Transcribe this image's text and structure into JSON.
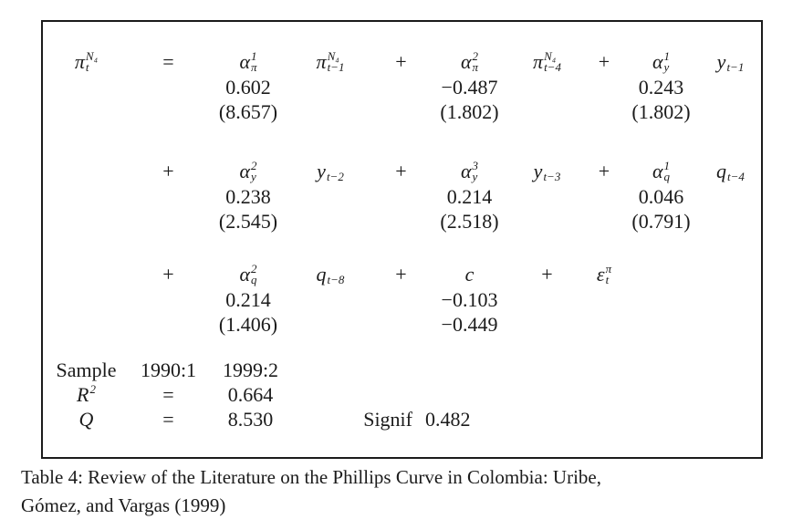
{
  "table_box": {
    "rows": [
      {
        "lhs": {
          "base": "π",
          "sup": "N₄",
          "sub": "t"
        },
        "terms": [
          {
            "op": "=",
            "coef": {
              "base": "α",
              "sup": "1",
              "sub": "π"
            },
            "value": "0.602",
            "tstat": "(8.657)",
            "var": {
              "base": "π",
              "sup": "N₄",
              "sub": "t−1"
            }
          },
          {
            "op": "+",
            "coef": {
              "base": "α",
              "sup": "2",
              "sub": "π"
            },
            "value": "−0.487",
            "tstat": "(1.802)",
            "var": {
              "base": "π",
              "sup": "N₄",
              "sub": "t−4"
            }
          },
          {
            "op": "+",
            "coef": {
              "base": "α",
              "sup": "1",
              "sub": "y"
            },
            "value": "0.243",
            "tstat": "(1.802)",
            "var": {
              "base": "y",
              "sub": "t−1"
            }
          }
        ]
      },
      {
        "terms": [
          {
            "op": "+",
            "coef": {
              "base": "α",
              "sup": "2",
              "sub": "y"
            },
            "value": "0.238",
            "tstat": "(2.545)",
            "var": {
              "base": "y",
              "sub": "t−2"
            }
          },
          {
            "op": "+",
            "coef": {
              "base": "α",
              "sup": "3",
              "sub": "y"
            },
            "value": "0.214",
            "tstat": "(2.518)",
            "var": {
              "base": "y",
              "sub": "t−3"
            }
          },
          {
            "op": "+",
            "coef": {
              "base": "α",
              "sup": "1",
              "sub": "q"
            },
            "value": "0.046",
            "tstat": "(0.791)",
            "var": {
              "base": "q",
              "sub": "t−4"
            }
          }
        ]
      },
      {
        "terms": [
          {
            "op": "+",
            "coef": {
              "base": "α",
              "sup": "2",
              "sub": "q"
            },
            "value": "0.214",
            "tstat": "(1.406)",
            "var": {
              "base": "q",
              "sub": "t−8"
            }
          },
          {
            "op": "+",
            "coef": {
              "base": "c"
            },
            "value": "−0.103",
            "tstat": "−0.449"
          },
          {
            "op": "+",
            "coef": {
              "base": "ε",
              "sup": "π",
              "sub": "t"
            }
          }
        ]
      }
    ],
    "stats": [
      {
        "label": {
          "base": "Sample"
        },
        "values": [
          "1990:1",
          "1999:2",
          "",
          ""
        ]
      },
      {
        "label": {
          "base": "R",
          "sup": "2"
        },
        "values": [
          "=",
          "0.664",
          "",
          ""
        ]
      },
      {
        "label": {
          "base": "Q"
        },
        "values": [
          "=",
          "8.530",
          "Signif",
          "0.482"
        ]
      }
    ]
  },
  "caption": {
    "line1": "Table 4: Review of the Literature on the Phillips Curve in Colombia: Uribe,",
    "line2": "Gómez, and Vargas (1999)"
  }
}
